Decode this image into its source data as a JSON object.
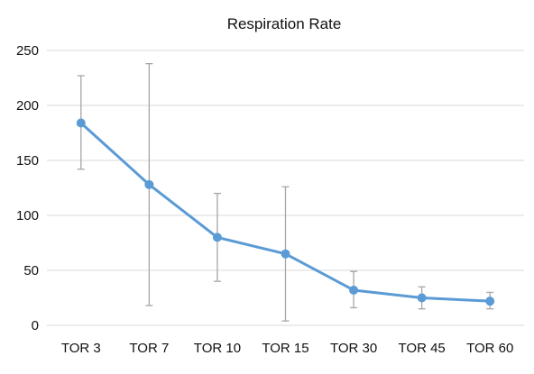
{
  "chart_data": {
    "type": "line",
    "title": "Respiration Rate",
    "xlabel": "",
    "ylabel": "",
    "categories": [
      "TOR 3",
      "TOR 7",
      "TOR 10",
      "TOR 15",
      "TOR 30",
      "TOR 45",
      "TOR 60"
    ],
    "series": [
      {
        "values": [
          184,
          128,
          80,
          65,
          32,
          25,
          22
        ],
        "error_low": [
          142,
          18,
          40,
          4,
          16,
          15,
          15
        ],
        "error_high": [
          227,
          238,
          120,
          126,
          49,
          35,
          30
        ]
      }
    ],
    "ylim": [
      0,
      250
    ],
    "yticks": [
      0,
      50,
      100,
      150,
      200,
      250
    ],
    "grid": "horizontal",
    "legend": "none",
    "colors": {
      "line": "#5b9bd5",
      "error_bar": "#a6a6a6",
      "grid": "#d9d9d9"
    }
  }
}
